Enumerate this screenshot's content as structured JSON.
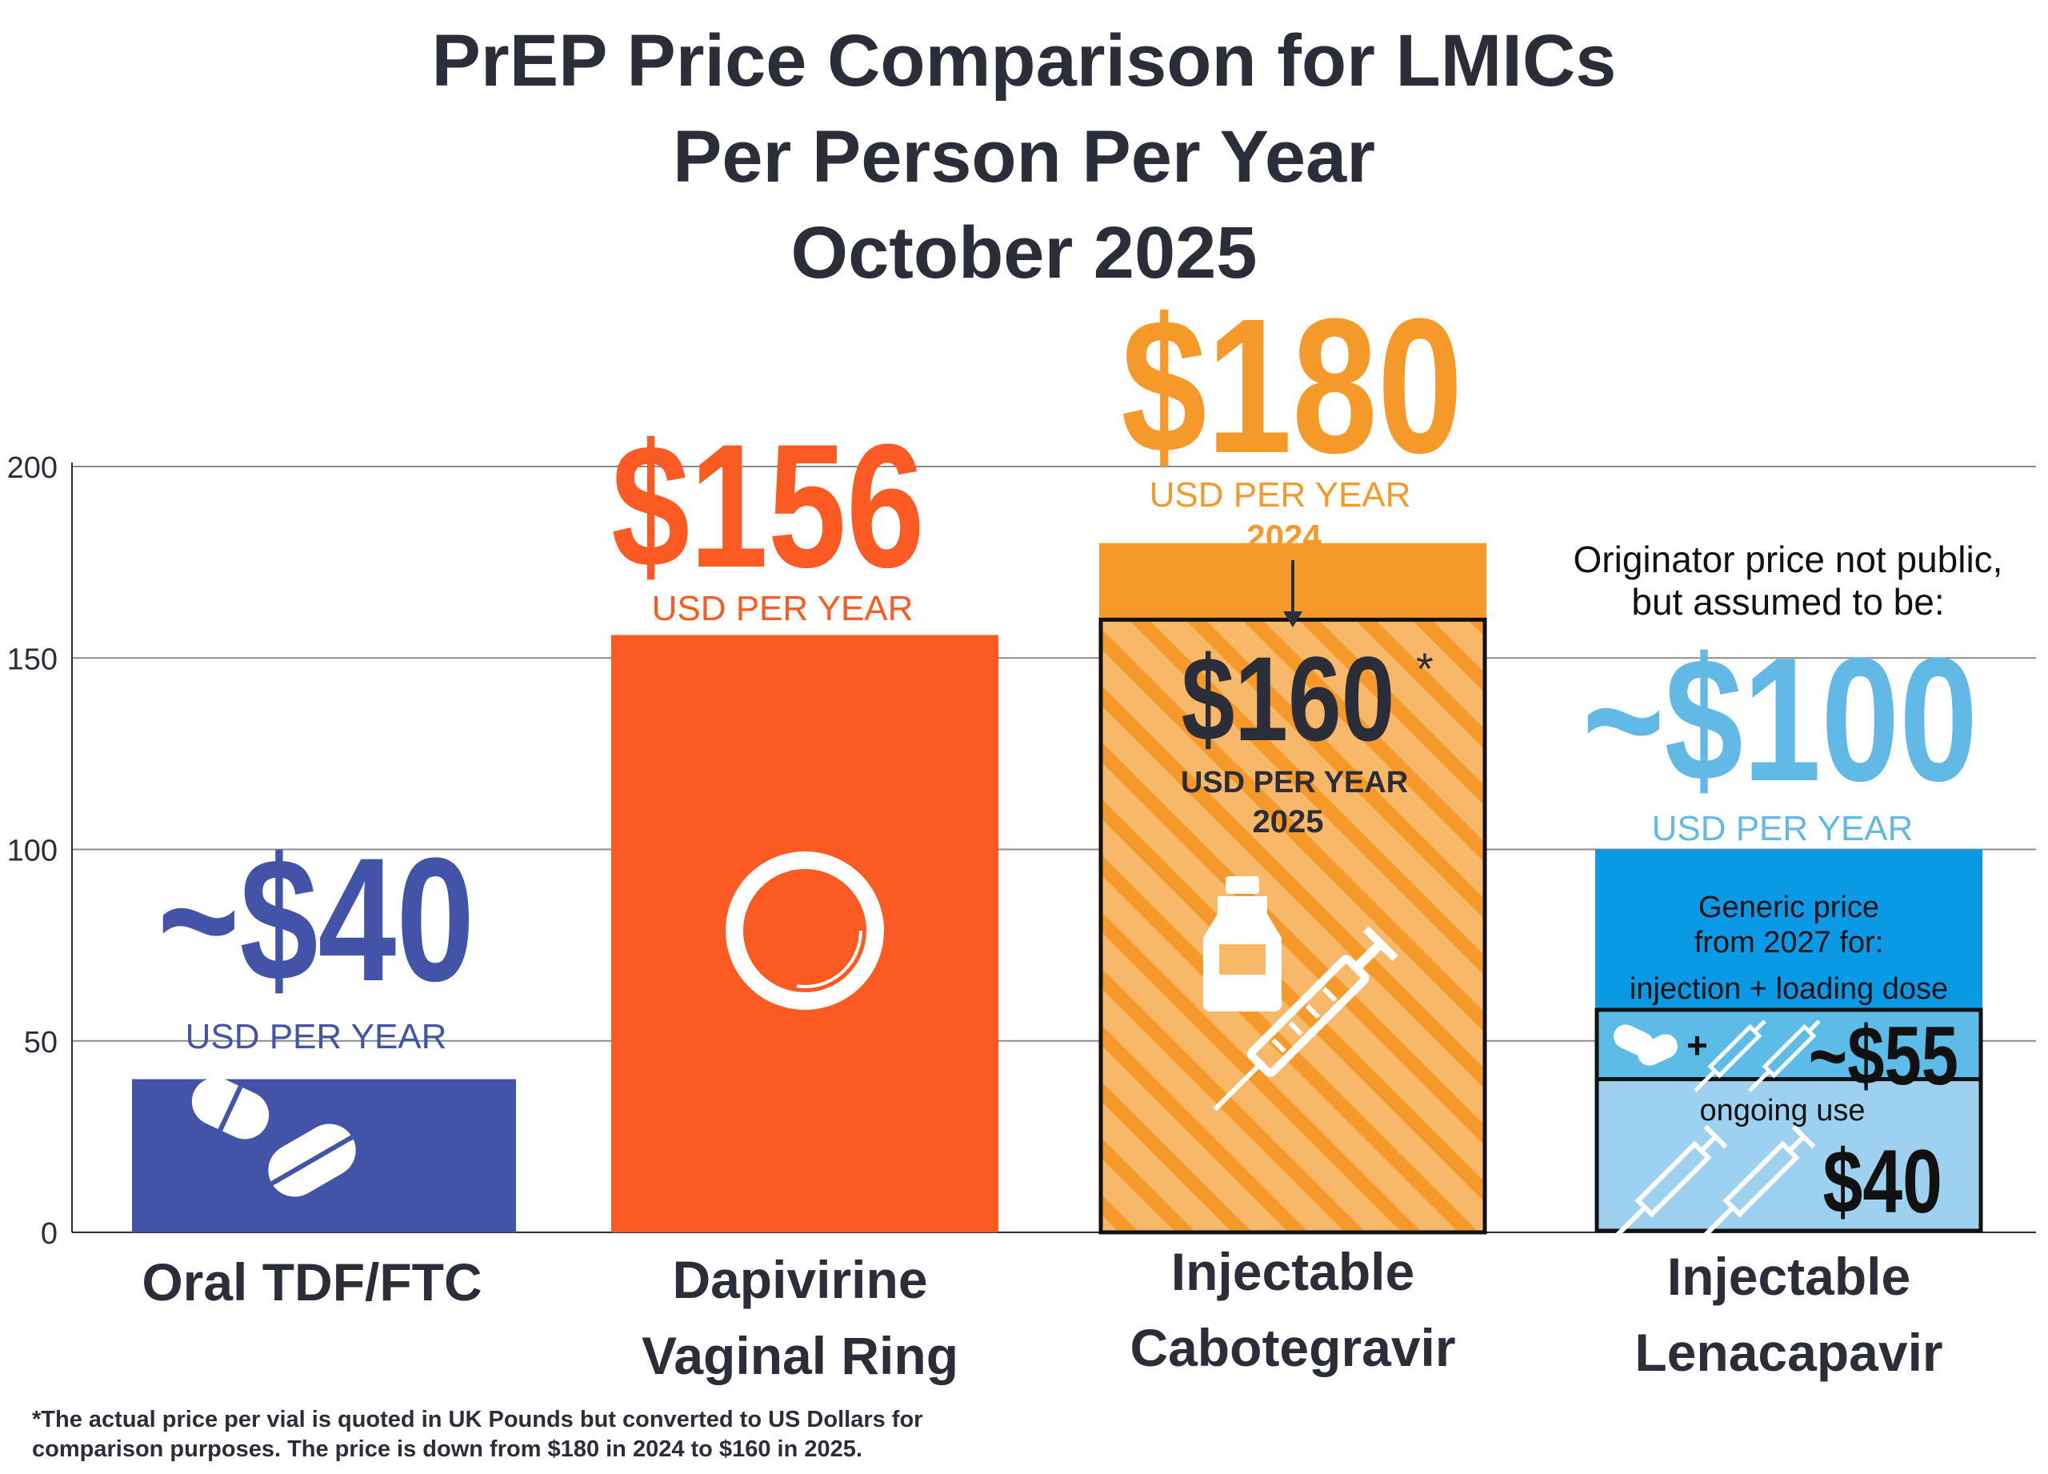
{
  "title": {
    "line1": "PrEP Price Comparison for LMICs",
    "line2": "Per Person Per Year",
    "line3": "October 2025"
  },
  "colors": {
    "oral": "#4353a8",
    "ring": "#fb5b22",
    "cab_2024": "#f59a2a",
    "cab_2025": "#f7b86a",
    "lena_price": "#62b9e6",
    "lena_generic": "#0999e5",
    "lena_loading": "#5dbbe7",
    "lena_ongoing": "#9ed0ef",
    "text_dark": "#2b2d38",
    "grid": "#8a8a8a"
  },
  "chart_data": {
    "type": "bar",
    "title": "PrEP Price Comparison for LMICs Per Person Per Year October 2025",
    "ylim": [
      0,
      200
    ],
    "yticks": [
      "0",
      "50",
      "100",
      "150",
      "200"
    ],
    "grid": true,
    "categories": [
      {
        "line1": "Oral TDF/FTC",
        "line2": ""
      },
      {
        "line1": "Dapivirine",
        "line2": "Vaginal Ring"
      },
      {
        "line1": "Injectable",
        "line2": "Cabotegravir"
      },
      {
        "line1": "Injectable",
        "line2": "Lenacapavir"
      }
    ],
    "bars": [
      {
        "category": "Oral TDF/FTC",
        "value": 40,
        "price_label": "~$40",
        "unit_label": "USD PER YEAR",
        "icon": "pills-icon"
      },
      {
        "category": "Dapivirine Vaginal Ring",
        "value": 156,
        "price_label": "$156",
        "unit_label": "USD PER YEAR",
        "icon": "ring-icon"
      },
      {
        "category": "Injectable Cabotegravir",
        "value_2024": 180,
        "value_2025": 160,
        "price_label_2024": "$180",
        "unit_label_2024": "USD PER YEAR",
        "year_2024": "2024",
        "price_label_2025": "$160",
        "asterisk": "*",
        "unit_label_2025": "USD PER YEAR",
        "year_2025": "2025",
        "icon": "vial-syringe-icon"
      },
      {
        "category": "Injectable Lenacapavir",
        "value": 100,
        "originator_note_line1": "Originator price not public,",
        "originator_note_line2": "but assumed to be:",
        "price_label": "~$100",
        "unit_label": "USD PER YEAR",
        "generic_line1": "Generic price",
        "generic_line2": "from 2027 for:",
        "generic_line3": "injection + loading dose",
        "loading_price": "~$55",
        "loading_plus": "+",
        "ongoing_label": "ongoing use",
        "ongoing_price": "$40",
        "segments": [
          {
            "name": "ongoing use",
            "value": 40
          },
          {
            "name": "injection + loading dose",
            "value": 55
          }
        ]
      }
    ]
  },
  "footnote": {
    "line1": "*The actual price per vial is quoted in UK Pounds but converted to US Dollars for",
    "line2": "comparison purposes. The price is down from $180 in 2024 to $160 in 2025."
  }
}
